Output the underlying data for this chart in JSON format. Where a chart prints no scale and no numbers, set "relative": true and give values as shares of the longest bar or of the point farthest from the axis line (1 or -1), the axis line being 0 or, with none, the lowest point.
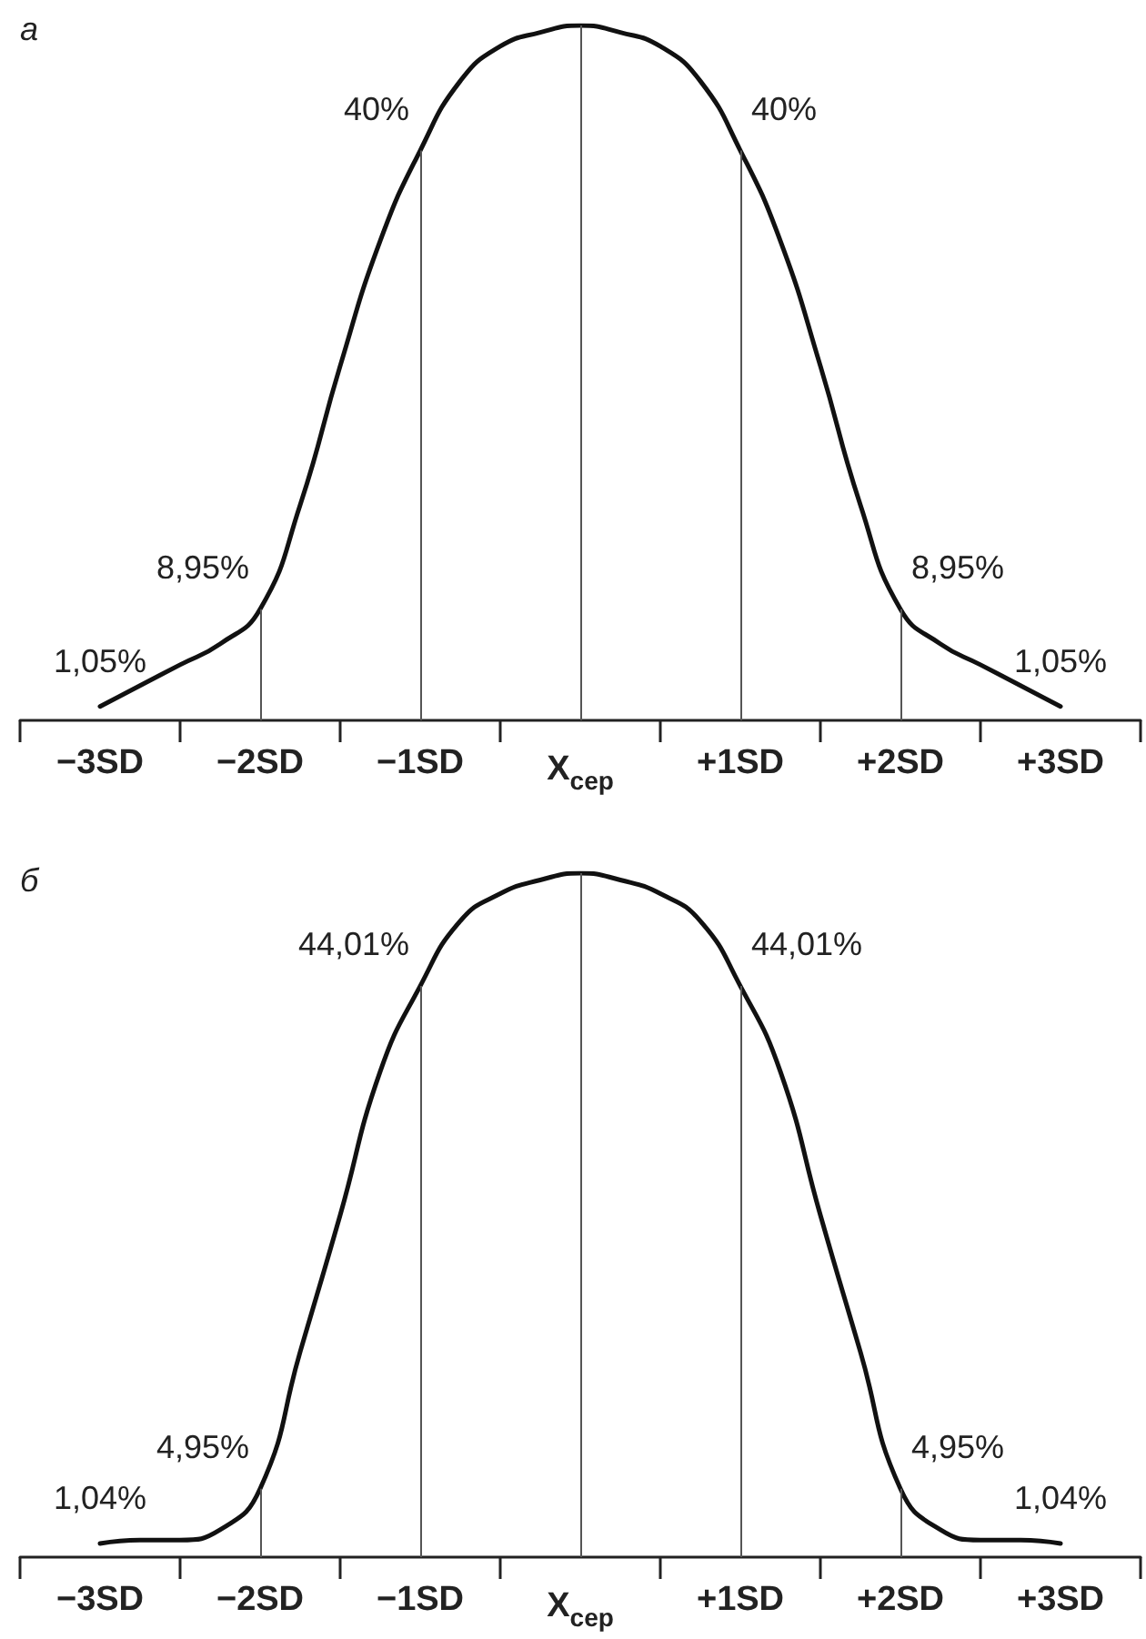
{
  "chart_data": [
    {
      "type": "line",
      "title": "а",
      "relative": true,
      "categories": [
        null,
        null,
        "−3SD",
        null,
        null,
        null,
        "−2SD",
        null,
        null,
        null,
        "−1SD",
        null,
        null,
        null,
        "X$_{сер}$",
        null,
        null,
        null,
        "+1SD",
        null,
        null,
        null,
        "+2SD",
        null,
        null,
        null,
        "+3SD",
        null,
        null
      ],
      "series": [
        {
          "color": "#111111",
          "values": [
            null,
            null,
            0.02,
            0.05,
            0.08,
            0.11,
            0.16,
            0.31,
            0.51,
            0.69,
            0.82,
            0.92,
            0.97,
            0.99,
            1,
            0.99,
            0.97,
            0.92,
            0.82,
            0.69,
            0.51,
            0.31,
            0.16,
            0.11,
            0.08,
            0.05,
            0.02,
            null,
            null
          ]
        }
      ],
      "ref_lines": [
        {
          "axis": "x",
          "value": "−2SD",
          "color": "#555555"
        },
        {
          "axis": "x",
          "value": "−1SD",
          "color": "#555555"
        },
        {
          "axis": "x",
          "value": "X$_{сер}$",
          "color": "#555555"
        },
        {
          "axis": "x",
          "value": "+1SD",
          "color": "#555555"
        },
        {
          "axis": "x",
          "value": "+2SD",
          "color": "#555555"
        }
      ],
      "annotations": [
        {
          "text": "1,05%",
          "x": "−3SD",
          "y": 0.02
        },
        {
          "text": "8,95%",
          "x": "−2SD",
          "y": 0.16
        },
        {
          "text": "40%",
          "x": "−1SD",
          "y": 0.82
        },
        {
          "text": "40%",
          "x": "+1SD",
          "y": 0.82
        },
        {
          "text": "8,95%",
          "x": "+2SD",
          "y": 0.16
        },
        {
          "text": "1,05%",
          "x": "+3SD",
          "y": 0.02
        }
      ]
    },
    {
      "type": "line",
      "title": "б",
      "relative": true,
      "categories": [
        null,
        null,
        "−3SD",
        null,
        null,
        null,
        "−2SD",
        null,
        null,
        null,
        "−1SD",
        null,
        null,
        null,
        "X$_{сер}$",
        null,
        null,
        null,
        "+1SD",
        null,
        null,
        null,
        "+2SD",
        null,
        null,
        null,
        "+3SD",
        null,
        null
      ],
      "series": [
        {
          "color": "#111111",
          "values": [
            null,
            null,
            0.02,
            0.025,
            0.025,
            0.04,
            0.1,
            0.3,
            0.5,
            0.71,
            0.835,
            0.93,
            0.97,
            0.99,
            1,
            0.99,
            0.97,
            0.93,
            0.835,
            0.71,
            0.5,
            0.3,
            0.1,
            0.04,
            0.025,
            0.025,
            0.02,
            null,
            null
          ]
        }
      ],
      "ref_lines": [
        {
          "axis": "x",
          "value": "−2SD",
          "color": "#555555"
        },
        {
          "axis": "x",
          "value": "−1SD",
          "color": "#555555"
        },
        {
          "axis": "x",
          "value": "X$_{сер}$",
          "color": "#555555"
        },
        {
          "axis": "x",
          "value": "+1SD",
          "color": "#555555"
        },
        {
          "axis": "x",
          "value": "+2SD",
          "color": "#555555"
        }
      ],
      "annotations": [
        {
          "text": "1,04%",
          "x": "−3SD",
          "y": 0.02
        },
        {
          "text": "4,95%",
          "x": "−2SD",
          "y": 0.1
        },
        {
          "text": "44,01%",
          "x": "−1SD",
          "y": 0.835
        },
        {
          "text": "44,01%",
          "x": "+1SD",
          "y": 0.835
        },
        {
          "text": "4,95%",
          "x": "+2SD",
          "y": 0.1
        },
        {
          "text": "1,04%",
          "x": "+3SD",
          "y": 0.02
        }
      ]
    }
  ]
}
